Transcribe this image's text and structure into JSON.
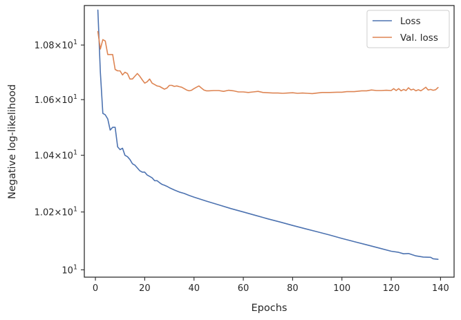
{
  "chart_data": {
    "type": "line",
    "xlabel": "Epochs",
    "ylabel": "Negative log-likelihood",
    "xlim": [
      -4.5,
      145.5
    ],
    "ylim": [
      9.975,
      10.947
    ],
    "y_scale": "log",
    "grid": false,
    "legend_position": "top-right",
    "x_ticks": [
      0,
      20,
      40,
      60,
      80,
      100,
      120,
      140
    ],
    "x_tick_labels": [
      "0",
      "20",
      "40",
      "60",
      "80",
      "100",
      "120",
      "140"
    ],
    "y_ticks": [
      {
        "value": 10.8,
        "mantissa": "1.08",
        "base": "10",
        "exp": "1"
      },
      {
        "value": 10.6,
        "mantissa": "1.06",
        "base": "10",
        "exp": "1"
      },
      {
        "value": 10.4,
        "mantissa": "1.04",
        "base": "10",
        "exp": "1"
      },
      {
        "value": 10.2,
        "mantissa": "1.02",
        "base": "10",
        "exp": "1"
      },
      {
        "value": 10.0,
        "mantissa": "",
        "base": "10",
        "exp": "1"
      }
    ],
    "series": [
      {
        "name": "Loss",
        "color": "#4c72b0",
        "points": [
          [
            1,
            10.93
          ],
          [
            2,
            10.7
          ],
          [
            3,
            10.55
          ],
          [
            4,
            10.545
          ],
          [
            5,
            10.53
          ],
          [
            6,
            10.49
          ],
          [
            7,
            10.5
          ],
          [
            8,
            10.5
          ],
          [
            9,
            10.43
          ],
          [
            10,
            10.42
          ],
          [
            11,
            10.425
          ],
          [
            12,
            10.4
          ],
          [
            13,
            10.395
          ],
          [
            14,
            10.385
          ],
          [
            15,
            10.37
          ],
          [
            16,
            10.365
          ],
          [
            17,
            10.355
          ],
          [
            18,
            10.345
          ],
          [
            19,
            10.34
          ],
          [
            20,
            10.34
          ],
          [
            21,
            10.33
          ],
          [
            22,
            10.325
          ],
          [
            23,
            10.32
          ],
          [
            24,
            10.31
          ],
          [
            25,
            10.31
          ],
          [
            26,
            10.303
          ],
          [
            27,
            10.297
          ],
          [
            28,
            10.294
          ],
          [
            29,
            10.29
          ],
          [
            30,
            10.285
          ],
          [
            32,
            10.277
          ],
          [
            34,
            10.27
          ],
          [
            36,
            10.265
          ],
          [
            38,
            10.258
          ],
          [
            40,
            10.252
          ],
          [
            45,
            10.238
          ],
          [
            50,
            10.225
          ],
          [
            55,
            10.212
          ],
          [
            60,
            10.2
          ],
          [
            65,
            10.188
          ],
          [
            70,
            10.176
          ],
          [
            75,
            10.165
          ],
          [
            80,
            10.153
          ],
          [
            85,
            10.142
          ],
          [
            90,
            10.131
          ],
          [
            95,
            10.12
          ],
          [
            100,
            10.108
          ],
          [
            105,
            10.097
          ],
          [
            110,
            10.086
          ],
          [
            115,
            10.075
          ],
          [
            120,
            10.064
          ],
          [
            123,
            10.06
          ],
          [
            125,
            10.055
          ],
          [
            127,
            10.056
          ],
          [
            130,
            10.048
          ],
          [
            133,
            10.044
          ],
          [
            136,
            10.043
          ],
          [
            137,
            10.038
          ],
          [
            139,
            10.036
          ]
        ]
      },
      {
        "name": "Val. loss",
        "color": "#dd8452",
        "points": [
          [
            1,
            10.85
          ],
          [
            2,
            10.785
          ],
          [
            3,
            10.82
          ],
          [
            4,
            10.815
          ],
          [
            5,
            10.765
          ],
          [
            6,
            10.765
          ],
          [
            7,
            10.765
          ],
          [
            8,
            10.71
          ],
          [
            9,
            10.705
          ],
          [
            10,
            10.705
          ],
          [
            11,
            10.69
          ],
          [
            12,
            10.7
          ],
          [
            13,
            10.695
          ],
          [
            14,
            10.675
          ],
          [
            15,
            10.675
          ],
          [
            16,
            10.685
          ],
          [
            17,
            10.695
          ],
          [
            18,
            10.685
          ],
          [
            19,
            10.672
          ],
          [
            20,
            10.66
          ],
          [
            21,
            10.665
          ],
          [
            22,
            10.675
          ],
          [
            23,
            10.66
          ],
          [
            24,
            10.655
          ],
          [
            25,
            10.65
          ],
          [
            26,
            10.648
          ],
          [
            27,
            10.643
          ],
          [
            28,
            10.638
          ],
          [
            29,
            10.642
          ],
          [
            30,
            10.652
          ],
          [
            31,
            10.652
          ],
          [
            32,
            10.648
          ],
          [
            33,
            10.65
          ],
          [
            34,
            10.647
          ],
          [
            35,
            10.645
          ],
          [
            36,
            10.64
          ],
          [
            37,
            10.635
          ],
          [
            38,
            10.632
          ],
          [
            39,
            10.634
          ],
          [
            40,
            10.64
          ],
          [
            41,
            10.645
          ],
          [
            42,
            10.65
          ],
          [
            43,
            10.642
          ],
          [
            44,
            10.635
          ],
          [
            45,
            10.632
          ],
          [
            46,
            10.632
          ],
          [
            48,
            10.633
          ],
          [
            50,
            10.633
          ],
          [
            52,
            10.63
          ],
          [
            54,
            10.634
          ],
          [
            56,
            10.632
          ],
          [
            58,
            10.628
          ],
          [
            60,
            10.628
          ],
          [
            62,
            10.626
          ],
          [
            64,
            10.628
          ],
          [
            66,
            10.63
          ],
          [
            68,
            10.626
          ],
          [
            70,
            10.625
          ],
          [
            72,
            10.624
          ],
          [
            74,
            10.624
          ],
          [
            76,
            10.623
          ],
          [
            78,
            10.624
          ],
          [
            80,
            10.625
          ],
          [
            82,
            10.623
          ],
          [
            84,
            10.624
          ],
          [
            86,
            10.623
          ],
          [
            88,
            10.622
          ],
          [
            90,
            10.624
          ],
          [
            92,
            10.626
          ],
          [
            95,
            10.626
          ],
          [
            98,
            10.627
          ],
          [
            100,
            10.627
          ],
          [
            102,
            10.629
          ],
          [
            105,
            10.629
          ],
          [
            108,
            10.632
          ],
          [
            110,
            10.632
          ],
          [
            112,
            10.635
          ],
          [
            114,
            10.633
          ],
          [
            116,
            10.633
          ],
          [
            118,
            10.634
          ],
          [
            120,
            10.633
          ],
          [
            121,
            10.64
          ],
          [
            122,
            10.633
          ],
          [
            123,
            10.64
          ],
          [
            124,
            10.632
          ],
          [
            125,
            10.637
          ],
          [
            126,
            10.633
          ],
          [
            127,
            10.643
          ],
          [
            128,
            10.635
          ],
          [
            129,
            10.638
          ],
          [
            130,
            10.632
          ],
          [
            131,
            10.636
          ],
          [
            132,
            10.632
          ],
          [
            133,
            10.638
          ],
          [
            134,
            10.645
          ],
          [
            135,
            10.635
          ],
          [
            136,
            10.637
          ],
          [
            137,
            10.634
          ],
          [
            138,
            10.636
          ],
          [
            139,
            10.644
          ]
        ]
      }
    ]
  }
}
